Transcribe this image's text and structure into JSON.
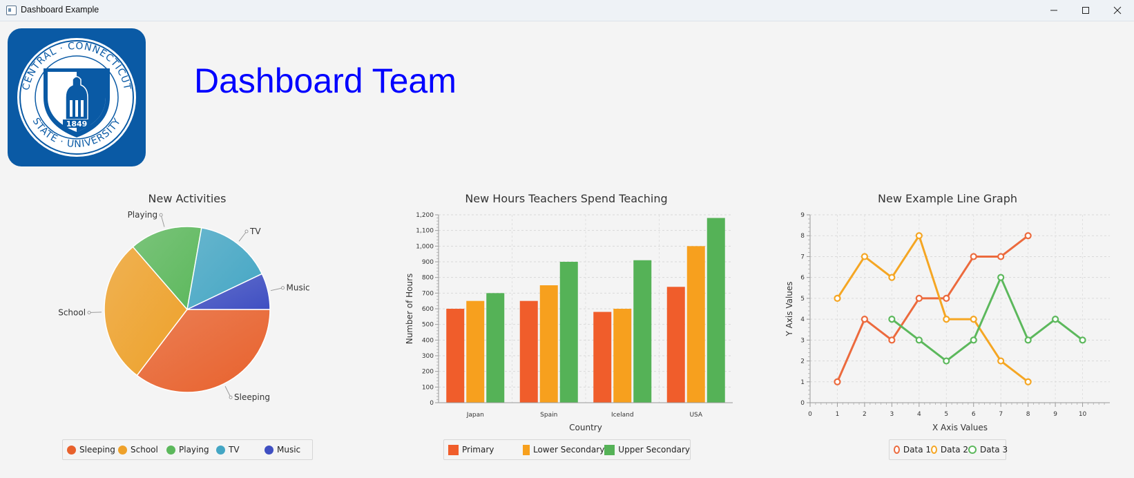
{
  "window": {
    "title": "Dashboard Example",
    "controls": {
      "minimize": "—",
      "maximize": "☐",
      "close": "✕"
    }
  },
  "header": {
    "logo": {
      "top_text": "CENTRAL · CONNECTICUT",
      "bottom_text": "STATE · UNIVERSITY",
      "year": "1849",
      "color": "#0a5aa5"
    },
    "title": "Dashboard Team",
    "title_color": "#0000ff"
  },
  "chart_data": [
    {
      "type": "pie",
      "title": "New Activities",
      "slices": [
        {
          "name": "Sleeping",
          "value": 35,
          "color": "#e8612c"
        },
        {
          "name": "School",
          "value": 28,
          "color": "#eea12a"
        },
        {
          "name": "Playing",
          "value": 14,
          "color": "#5cb85c"
        },
        {
          "name": "TV",
          "value": 15,
          "color": "#44a6c4"
        },
        {
          "name": "Music",
          "value": 7,
          "color": "#3f4fc2"
        }
      ],
      "legend": [
        "Sleeping",
        "School",
        "Playing",
        "TV",
        "Music"
      ],
      "legend_position": "bottom"
    },
    {
      "type": "bar",
      "title": "New Hours Teachers Spend Teaching",
      "xlabel": "Country",
      "ylabel": "Number of Hours",
      "categories": [
        "Japan",
        "Spain",
        "Iceland",
        "USA"
      ],
      "series": [
        {
          "name": "Primary",
          "values": [
            600,
            650,
            580,
            740
          ],
          "color": "#f05d2b"
        },
        {
          "name": "Lower Secondary",
          "values": [
            650,
            750,
            600,
            1000
          ],
          "color": "#f7a01e"
        },
        {
          "name": "Upper Secondary",
          "values": [
            700,
            900,
            910,
            1180
          ],
          "color": "#55b257"
        }
      ],
      "ylim": [
        0,
        1200
      ],
      "yticks": [
        0,
        100,
        200,
        300,
        400,
        500,
        600,
        700,
        800,
        900,
        1000,
        1100,
        1200
      ],
      "ytick_labels": [
        "0",
        "100",
        "200",
        "300",
        "400",
        "500",
        "600",
        "700",
        "800",
        "900",
        "1,000",
        "1,100",
        "1,200"
      ],
      "grid": true,
      "legend_position": "bottom"
    },
    {
      "type": "line",
      "title": "New Example Line Graph",
      "xlabel": "X Axis Values",
      "ylabel": "Y Axis Values",
      "xlim": [
        0,
        11
      ],
      "ylim": [
        0,
        9
      ],
      "xticks": [
        "0",
        "1",
        "2",
        "3",
        "4",
        "5",
        "6",
        "7",
        "8",
        "9",
        "10"
      ],
      "yticks": [
        "0",
        "1",
        "2",
        "3",
        "4",
        "5",
        "6",
        "7",
        "8",
        "9"
      ],
      "series": [
        {
          "name": "Data 1",
          "color": "#ec6a3d",
          "points": [
            [
              1,
              1
            ],
            [
              2,
              4
            ],
            [
              3,
              3
            ],
            [
              4,
              5
            ],
            [
              5,
              5
            ],
            [
              6,
              7
            ],
            [
              7,
              7
            ],
            [
              8,
              8
            ]
          ]
        },
        {
          "name": "Data 2",
          "color": "#f5a623",
          "points": [
            [
              1,
              5
            ],
            [
              2,
              7
            ],
            [
              3,
              6
            ],
            [
              4,
              8
            ],
            [
              5,
              4
            ],
            [
              6,
              4
            ],
            [
              7,
              2
            ],
            [
              8,
              1
            ]
          ]
        },
        {
          "name": "Data 3",
          "color": "#5cb85c",
          "points": [
            [
              3,
              4
            ],
            [
              4,
              3
            ],
            [
              5,
              2
            ],
            [
              6,
              3
            ],
            [
              7,
              6
            ],
            [
              8,
              3
            ],
            [
              9,
              4
            ],
            [
              10,
              3
            ]
          ]
        }
      ],
      "grid": true,
      "legend_position": "bottom"
    }
  ]
}
